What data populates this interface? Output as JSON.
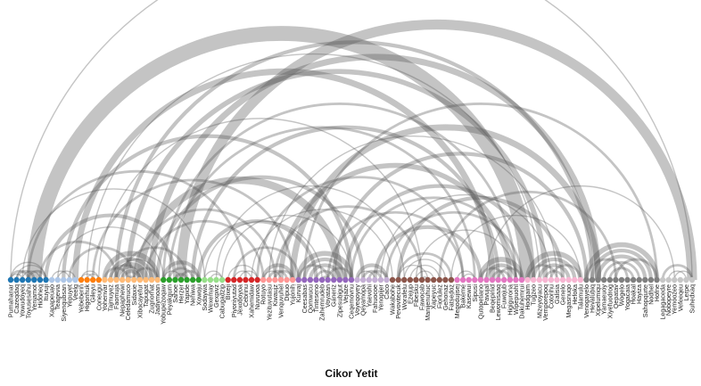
{
  "chart_data": {
    "type": "arc",
    "title": "Cikor Yetit",
    "nodes": [
      {
        "name": "Pumahanar",
        "group": 0
      },
      {
        "name": "Cazeqdaq",
        "group": 0
      },
      {
        "name": "Yowudoyeq",
        "group": 0
      },
      {
        "name": "Toyusesahu",
        "group": 0
      },
      {
        "name": "Yenjamot",
        "group": 0
      },
      {
        "name": "Hidoheq",
        "group": 0
      },
      {
        "name": "Ituyuji",
        "group": 0
      },
      {
        "name": "Xapapeuao",
        "group": 1
      },
      {
        "name": "Teagevia",
        "group": 1
      },
      {
        "name": "Siyenqubsan",
        "group": 1
      },
      {
        "name": "Yepuyet",
        "group": 1
      },
      {
        "name": "Veelg",
        "group": 1
      },
      {
        "name": "Yebeberin",
        "group": 2
      },
      {
        "name": "Higonhuk",
        "group": 2
      },
      {
        "name": "Gileyu",
        "group": 2
      },
      {
        "name": "Coneugu",
        "group": 2
      },
      {
        "name": "Yohenvar",
        "group": 3
      },
      {
        "name": "Tajmuyez",
        "group": 3
      },
      {
        "name": "Faomuja",
        "group": 3
      },
      {
        "name": "Nepaphewi",
        "group": 3
      },
      {
        "name": "Celedamuco",
        "group": 3
      },
      {
        "name": "Sidaxie",
        "group": 3
      },
      {
        "name": "Xibocayefur",
        "group": 3
      },
      {
        "name": "Tapugat",
        "group": 3
      },
      {
        "name": "Zuqnorhat",
        "group": 3
      },
      {
        "name": "Jadiymoan",
        "group": 3
      },
      {
        "name": "Yobupezoqaw",
        "group": 4
      },
      {
        "name": "Peyakgurn",
        "group": 4
      },
      {
        "name": "Sahoe",
        "group": 4
      },
      {
        "name": "Herzer",
        "group": 4
      },
      {
        "name": "Yapide",
        "group": 4
      },
      {
        "name": "Nehiwa",
        "group": 4
      },
      {
        "name": "Xowoju",
        "group": 4
      },
      {
        "name": "Sodaywa",
        "group": 5
      },
      {
        "name": "Wexemay",
        "group": 5
      },
      {
        "name": "Gexpivz",
        "group": 5
      },
      {
        "name": "Cabugadzip",
        "group": 5
      },
      {
        "name": "Bixeji",
        "group": 6
      },
      {
        "name": "Piyoniyutad",
        "group": 6
      },
      {
        "name": "Jexoboyoa",
        "group": 6
      },
      {
        "name": "Cebrinu",
        "group": 6
      },
      {
        "name": "Xahemidaw",
        "group": 6
      },
      {
        "name": "Nuvuvoa",
        "group": 6
      },
      {
        "name": "Rotuyo",
        "group": 7
      },
      {
        "name": "Yezituvutasu",
        "group": 7
      },
      {
        "name": "Kiwaujz",
        "group": 7
      },
      {
        "name": "Venquvuhel",
        "group": 7
      },
      {
        "name": "Dipuo",
        "group": 7
      },
      {
        "name": "Yujonih",
        "group": 7
      },
      {
        "name": "Kurvaj",
        "group": 8
      },
      {
        "name": "Ceesabas",
        "group": 8
      },
      {
        "name": "Qomwucu",
        "group": 8
      },
      {
        "name": "Tinteseno",
        "group": 8
      },
      {
        "name": "Zahemrudeb",
        "group": 8
      },
      {
        "name": "Voyatan",
        "group": 8
      },
      {
        "name": "Ganeriz",
        "group": 8
      },
      {
        "name": "Zipesubigut",
        "group": 8
      },
      {
        "name": "Vejaze",
        "group": 8
      },
      {
        "name": "Ceqemovnu",
        "group": 8
      },
      {
        "name": "Voyeqoyey",
        "group": 9
      },
      {
        "name": "Qeyamopa",
        "group": 9
      },
      {
        "name": "Yaevohi",
        "group": 9
      },
      {
        "name": "Fahuocoe",
        "group": 9
      },
      {
        "name": "Yenopijer",
        "group": 9
      },
      {
        "name": "Caco",
        "group": 9
      },
      {
        "name": "Wakabohe",
        "group": 10
      },
      {
        "name": "Pevovitecuk",
        "group": 11
      },
      {
        "name": "Worafelu",
        "group": 11
      },
      {
        "name": "Ezejup",
        "group": 11
      },
      {
        "name": "Fibesku",
        "group": 11
      },
      {
        "name": "Fawocab",
        "group": 11
      },
      {
        "name": "Manijenuhuc",
        "group": 11
      },
      {
        "name": "Xapeyuc",
        "group": 11
      },
      {
        "name": "Fiorlulez",
        "group": 11
      },
      {
        "name": "Gehonaz",
        "group": 11
      },
      {
        "name": "Fatsedoz",
        "group": 11
      },
      {
        "name": "Megodujisej",
        "group": 12
      },
      {
        "name": "Bakeme",
        "group": 12
      },
      {
        "name": "Kasewui",
        "group": 12
      },
      {
        "name": "Sipusi",
        "group": 12
      },
      {
        "name": "Qutopetiano",
        "group": 13
      },
      {
        "name": "Pavujal",
        "group": 13
      },
      {
        "name": "Beqepinid",
        "group": 13
      },
      {
        "name": "Lewomisaaq",
        "group": 13
      },
      {
        "name": "Fuwojub",
        "group": 13
      },
      {
        "name": "Higigurona",
        "group": 13
      },
      {
        "name": "Wipepuohl",
        "group": 13
      },
      {
        "name": "Dakuhemrui",
        "group": 13
      },
      {
        "name": "Hodgaim",
        "group": 14
      },
      {
        "name": "Tugzeo",
        "group": 14
      },
      {
        "name": "Mizeyoyacu",
        "group": 14
      },
      {
        "name": "Vemporepoq",
        "group": 14
      },
      {
        "name": "Cotorihu",
        "group": 14
      },
      {
        "name": "Galisia",
        "group": 14
      },
      {
        "name": "Genelo",
        "group": 14
      },
      {
        "name": "Megasnuqo",
        "group": 14
      },
      {
        "name": "Hefoka",
        "group": 14
      },
      {
        "name": "Talamulu",
        "group": 14
      },
      {
        "name": "Venogayelo",
        "group": 15
      },
      {
        "name": "Hevalubiq",
        "group": 15
      },
      {
        "name": "Xipelumiqu",
        "group": 15
      },
      {
        "name": "Yamaeuoy",
        "group": 15
      },
      {
        "name": "Xiyefuodrog",
        "group": 15
      },
      {
        "name": "Qepatav",
        "group": 15
      },
      {
        "name": "Wogelo",
        "group": 15
      },
      {
        "name": "Yogacaia",
        "group": 15
      },
      {
        "name": "Hoakal",
        "group": 15
      },
      {
        "name": "Hayiza",
        "group": 15
      },
      {
        "name": "Sahopqurte",
        "group": 15
      },
      {
        "name": "Nodhel",
        "group": 15
      },
      {
        "name": "Hofne",
        "group": 15
      },
      {
        "name": "Legagaceda",
        "group": 16
      },
      {
        "name": "Nobopeyre",
        "group": 16
      },
      {
        "name": "Yemoozeo",
        "group": 16
      },
      {
        "name": "Vefeeqeu",
        "group": 16
      },
      {
        "name": "Lerpe",
        "group": 16
      },
      {
        "name": "Suhedxaq",
        "group": 16
      }
    ],
    "links": [
      [
        0,
        3,
        2
      ],
      [
        0,
        6,
        1
      ],
      [
        1,
        4,
        2
      ],
      [
        2,
        5,
        1
      ],
      [
        3,
        6,
        2
      ],
      [
        1,
        6,
        1
      ],
      [
        0,
        2,
        1
      ],
      [
        7,
        10,
        1
      ],
      [
        8,
        11,
        1
      ],
      [
        12,
        15,
        1
      ],
      [
        13,
        15,
        1
      ],
      [
        12,
        14,
        1
      ],
      [
        16,
        25,
        4
      ],
      [
        17,
        24,
        3
      ],
      [
        18,
        23,
        5
      ],
      [
        19,
        22,
        3
      ],
      [
        20,
        21,
        2
      ],
      [
        16,
        20,
        2
      ],
      [
        21,
        25,
        2
      ],
      [
        17,
        22,
        2
      ],
      [
        18,
        25,
        1
      ],
      [
        26,
        32,
        3
      ],
      [
        27,
        31,
        2
      ],
      [
        28,
        30,
        2
      ],
      [
        26,
        29,
        1
      ],
      [
        29,
        32,
        2
      ],
      [
        33,
        36,
        1
      ],
      [
        34,
        36,
        1
      ],
      [
        37,
        42,
        1
      ],
      [
        38,
        41,
        1
      ],
      [
        39,
        42,
        1
      ],
      [
        43,
        48,
        3
      ],
      [
        44,
        47,
        2
      ],
      [
        45,
        48,
        2
      ],
      [
        43,
        46,
        1
      ],
      [
        49,
        58,
        4
      ],
      [
        50,
        57,
        3
      ],
      [
        51,
        56,
        3
      ],
      [
        52,
        55,
        2
      ],
      [
        53,
        54,
        2
      ],
      [
        49,
        54,
        2
      ],
      [
        54,
        58,
        2
      ],
      [
        59,
        64,
        3
      ],
      [
        60,
        63,
        2
      ],
      [
        61,
        64,
        2
      ],
      [
        59,
        62,
        1
      ],
      [
        66,
        75,
        2
      ],
      [
        67,
        74,
        1
      ],
      [
        68,
        73,
        1
      ],
      [
        69,
        72,
        1
      ],
      [
        70,
        71,
        1
      ],
      [
        66,
        71,
        1
      ],
      [
        76,
        79,
        1
      ],
      [
        77,
        79,
        1
      ],
      [
        80,
        87,
        4
      ],
      [
        81,
        86,
        3
      ],
      [
        82,
        85,
        2
      ],
      [
        83,
        87,
        2
      ],
      [
        80,
        84,
        2
      ],
      [
        88,
        97,
        4
      ],
      [
        89,
        96,
        3
      ],
      [
        90,
        95,
        3
      ],
      [
        91,
        94,
        2
      ],
      [
        92,
        97,
        2
      ],
      [
        88,
        93,
        2
      ],
      [
        98,
        110,
        4
      ],
      [
        99,
        109,
        3
      ],
      [
        100,
        108,
        3
      ],
      [
        101,
        107,
        2
      ],
      [
        102,
        106,
        2
      ],
      [
        103,
        110,
        2
      ],
      [
        98,
        105,
        2
      ],
      [
        111,
        116,
        2
      ],
      [
        112,
        115,
        1
      ],
      [
        113,
        116,
        1
      ],
      [
        4,
        88,
        12
      ],
      [
        22,
        56,
        6
      ],
      [
        29,
        116,
        8
      ],
      [
        11,
        82,
        5
      ],
      [
        20,
        91,
        4
      ],
      [
        25,
        60,
        3
      ],
      [
        32,
        52,
        3
      ],
      [
        9,
        58,
        3
      ],
      [
        3,
        40,
        2
      ],
      [
        0,
        116,
        1
      ],
      [
        15,
        70,
        1
      ],
      [
        42,
        77,
        2
      ],
      [
        48,
        100,
        5
      ],
      [
        55,
        98,
        3
      ],
      [
        6,
        28,
        3
      ],
      [
        10,
        21,
        2
      ],
      [
        24,
        100,
        5
      ],
      [
        46,
        85,
        4
      ],
      [
        31,
        83,
        3
      ],
      [
        45,
        70,
        2
      ],
      [
        62,
        80,
        3
      ],
      [
        38,
        49,
        2
      ],
      [
        19,
        30,
        2
      ],
      [
        66,
        94,
        3
      ],
      [
        73,
        103,
        2
      ],
      [
        13,
        90,
        1
      ],
      [
        18,
        99,
        3
      ],
      [
        27,
        79,
        2
      ],
      [
        35,
        67,
        1
      ],
      [
        58,
        86,
        2
      ],
      [
        50,
        110,
        2
      ],
      [
        63,
        92,
        1
      ],
      [
        36,
        58,
        1
      ],
      [
        14,
        48,
        2
      ],
      [
        2,
        33,
        1
      ],
      [
        57,
        89,
        3
      ],
      [
        41,
        65,
        1
      ],
      [
        23,
        43,
        2
      ],
      [
        26,
        86,
        2
      ],
      [
        44,
        93,
        1
      ],
      [
        64,
        87,
        2
      ],
      [
        75,
        97,
        1
      ],
      [
        5,
        18,
        2
      ],
      [
        8,
        26,
        1
      ],
      [
        21,
        45,
        2
      ],
      [
        33,
        53,
        1
      ],
      [
        54,
        77,
        2
      ],
      [
        69,
        86,
        1
      ],
      [
        81,
        113,
        1
      ]
    ],
    "group_colors": [
      "#1f77b4",
      "#aec7e8",
      "#ff7f0e",
      "#ffbb78",
      "#2ca02c",
      "#98df8a",
      "#d62728",
      "#ff9896",
      "#9467bd",
      "#c5b0d5",
      "#8c564b",
      "#8c564b",
      "#e377c2",
      "#e377c2",
      "#f7b6d2",
      "#7f7f7f",
      "#c7c7c7"
    ],
    "node_count_shown": 117
  }
}
